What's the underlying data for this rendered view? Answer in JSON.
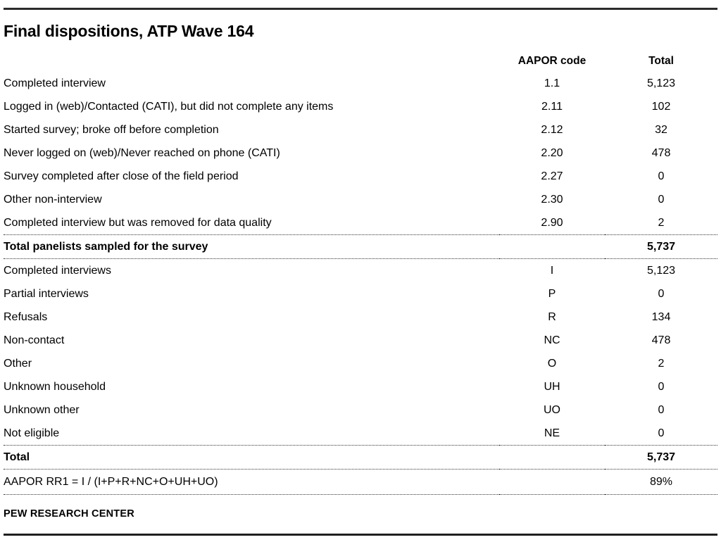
{
  "title": "Final dispositions, ATP Wave 164",
  "table": {
    "headers": {
      "code": "AAPOR code",
      "total": "Total"
    },
    "section1": [
      {
        "label": "Completed interview",
        "code": "1.1",
        "total": "5,123"
      },
      {
        "label": "Logged in (web)/Contacted (CATI), but did not complete any items",
        "code": "2.11",
        "total": "102"
      },
      {
        "label": "Started survey; broke off before completion",
        "code": "2.12",
        "total": "32"
      },
      {
        "label": "Never logged on (web)/Never reached on phone (CATI)",
        "code": "2.20",
        "total": "478"
      },
      {
        "label": "Survey completed after close of the field period",
        "code": "2.27",
        "total": "0"
      },
      {
        "label": "Other non-interview",
        "code": "2.30",
        "total": "0"
      },
      {
        "label": "Completed interview but was removed for data quality",
        "code": "2.90",
        "total": "2"
      }
    ],
    "total1": {
      "label": "Total panelists sampled for the survey",
      "total": "5,737"
    },
    "section2": [
      {
        "label": "Completed interviews",
        "code": "I",
        "total": "5,123"
      },
      {
        "label": "Partial interviews",
        "code": "P",
        "total": "0"
      },
      {
        "label": "Refusals",
        "code": "R",
        "total": "134"
      },
      {
        "label": "Non-contact",
        "code": "NC",
        "total": "478"
      },
      {
        "label": "Other",
        "code": "O",
        "total": "2"
      },
      {
        "label": "Unknown household",
        "code": "UH",
        "total": "0"
      },
      {
        "label": "Unknown other",
        "code": "UO",
        "total": "0"
      },
      {
        "label": "Not eligible",
        "code": "NE",
        "total": "0"
      }
    ],
    "total2": {
      "label": "Total",
      "total": "5,737"
    },
    "response_rate": {
      "label": "AAPOR RR1 = I / (I+P+R+NC+O+UH+UO)",
      "total": "89%"
    }
  },
  "footer": {
    "source": "PEW RESEARCH CENTER"
  },
  "colors": {
    "text": "#000000",
    "rule": "#2b2b2b",
    "dotted": "#333333"
  }
}
